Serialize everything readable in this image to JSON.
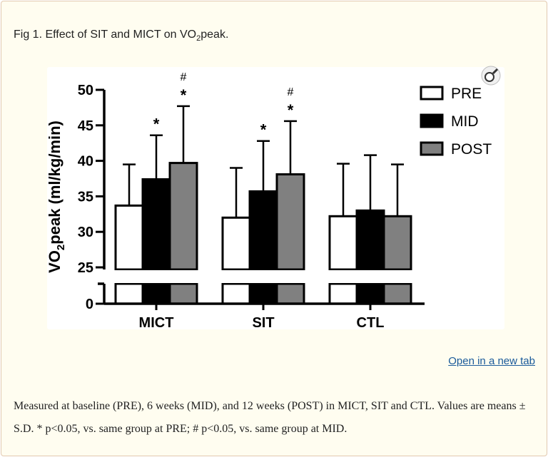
{
  "figure": {
    "title_prefix": "Fig 1. Effect of SIT and MICT on VO",
    "title_sub": "2",
    "title_suffix": "peak.",
    "open_link": "Open in a new tab",
    "caption": "Measured at baseline (PRE), 6 weeks (MID), and 12 weeks (POST) in MICT, SIT and CTL. Values are means ± S.D. * p<0.05, vs. same group at PRE; # p<0.05, vs. same group at MID.",
    "zoom_icon": "magnifier-icon"
  },
  "chart_data": {
    "type": "bar",
    "ylabel_main": "VO",
    "ylabel_sub": "2",
    "ylabel_rest": "peak (ml/kg/min)",
    "categories": [
      "MICT",
      "SIT",
      "CTL"
    ],
    "yticks": [
      "0",
      "25",
      "30",
      "35",
      "40",
      "45",
      "50"
    ],
    "ylim": [
      0,
      50
    ],
    "axis_break": [
      0,
      25
    ],
    "legend_position": "top-right",
    "series": [
      {
        "name": "PRE",
        "color": "#ffffff",
        "values": [
          33.7,
          32.0,
          32.2
        ],
        "sd": [
          5.8,
          7.0,
          7.4
        ],
        "annotations": [
          "",
          "",
          ""
        ]
      },
      {
        "name": "MID",
        "color": "#000000",
        "values": [
          37.4,
          35.7,
          33.0
        ],
        "sd": [
          6.2,
          7.1,
          7.8
        ],
        "annotations": [
          "*",
          "*",
          ""
        ]
      },
      {
        "name": "POST",
        "color": "#808080",
        "values": [
          39.7,
          38.1,
          32.2
        ],
        "sd": [
          8.0,
          7.5,
          7.3
        ],
        "annotations": [
          "#\n*",
          "#\n*",
          ""
        ]
      }
    ]
  }
}
